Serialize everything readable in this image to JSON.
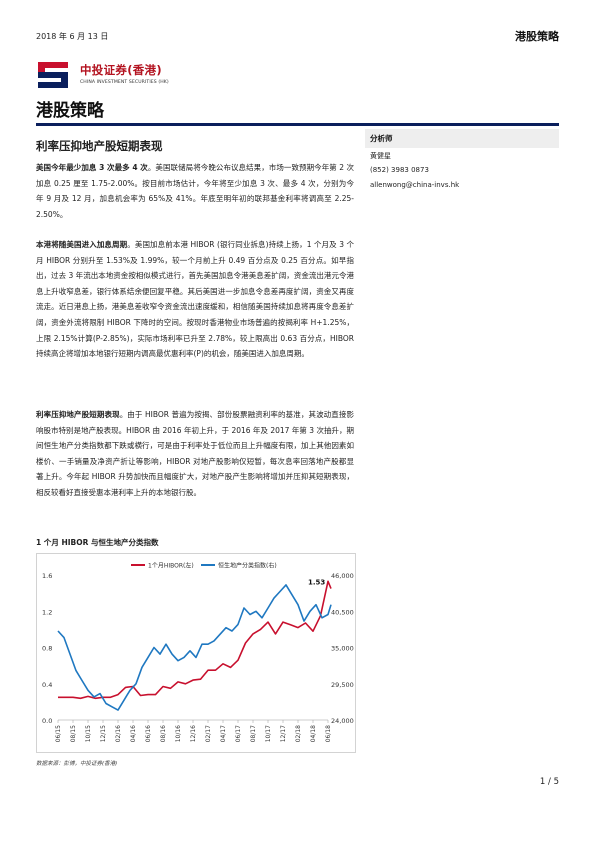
{
  "header": {
    "date": "2018 年 6 月 13 日",
    "category": "港股策略"
  },
  "logo": {
    "name_cn": "中投证券(香港)",
    "name_en": "CHINA INVESTMENT SECURITIES (HK)"
  },
  "page_title": "港股策略",
  "article_title": "利率压抑地产股短期表现",
  "paragraphs": [
    {
      "lead": "美国今年最少加息 3 次最多 4 次",
      "text": "。美国联储局将今晚公布议息结果，市场一致预期今年第 2 次加息 0.25 厘至 1.75-2.00%。按目前市场估计，今年将至少加息 3 次、最多 4 次，分别为今年 9 月及 12 月，加息机会率为 65%及 41%。年底至明年初的联邦基金利率将调高至 2.25-2.50%。"
    },
    {
      "lead": "本港将随美国进入加息周期",
      "text": "。美国加息前本港 HIBOR (银行同业拆息)持续上扬，1 个月及 3 个月 HIBOR 分别升至 1.53%及 1.99%，较一个月前上升 0.49 百分点及 0.25 百分点。如早指出，过去 3 年流出本地资金按相似模式进行，首先美国加息令港美息差扩阔，资金流出港元令港息上升收窄息差，银行体系结余便回复平稳。其后美国进一步加息令息差再度扩阔，资金又再度流走。近日港息上扬，港美息差收窄令资金流出速度缓和，相信随美国持续加息将再度令息差扩阔，资金外流将限制 HIBOR 下降时的空间。按现时香港物业市场普遍的按揭利率 H+1.25%，上限 2.15%计算(P-2.85%)，实际市场利率已升至 2.78%，较上限高出 0.63 百分点，HIBOR 持续高企将增加本地银行短期内调高最优惠利率(P)的机会，随美国进入加息周期。"
    },
    {
      "lead": "利率压抑地产股短期表现",
      "text": "。由于 HIBOR 普遍为按揭、部份股票融资利率的基准，其波动直接影响股市特别是地产股表现。HIBOR 由 2016 年初上升，于 2016 年及 2017 年第 3 次抽升，期间恒生地产分类指数都下跌或横行，可是由于利率处于低位而且上升幅度有限，加上其他因素如楼价、一手销量及净资产折让等影响，HIBOR 对地产股影响仅短暂，每次息率回落地产股都显著上升。今年起 HIBOR 升势加快而且幅度扩大，对地产股产生影响将增加并压抑其短期表现，相反较看好直接受惠本港利率上升的本地银行股。"
    }
  ],
  "sidebar": {
    "heading": "分析师",
    "analyst": "黄健星",
    "phone": "(852) 3983 0873",
    "email": "allenwong@china-invs.hk"
  },
  "chart_title": "1 个月 HIBOR 与恒生地产分类指数",
  "source": "数据来源：彭博，中投证券(香港)",
  "page_number": "1 / 5",
  "colors": {
    "hibor": "#c8102e",
    "index": "#1f78c1",
    "title_bar": "#0a1f5c"
  },
  "chart_data": {
    "type": "line",
    "x_ticks": [
      "06/15",
      "08/15",
      "10/15",
      "12/15",
      "02/16",
      "04/16",
      "06/16",
      "08/16",
      "10/16",
      "12/16",
      "02/17",
      "04/17",
      "06/17",
      "08/17",
      "10/17",
      "12/17",
      "02/18",
      "04/18",
      "06/18"
    ],
    "y_left_ticks": [
      "0.0",
      "0.4",
      "0.8",
      "1.2",
      "1.6"
    ],
    "y_right_ticks": [
      "24,000",
      "29,500",
      "35,000",
      "40,500",
      "46,000"
    ],
    "y_left_range": [
      0,
      1.6
    ],
    "y_right_range": [
      24000,
      46000
    ],
    "annotation": "1.53",
    "series": [
      {
        "name": "1个月HIBOR(左)",
        "axis": "left",
        "x": [
          0,
          0.5,
          1,
          1.5,
          2,
          2.5,
          3,
          3.5,
          4,
          4.5,
          5,
          5.5,
          6,
          6.5,
          7,
          7.5,
          8,
          8.5,
          9,
          9.5,
          10,
          10.5,
          11,
          11.5,
          12,
          12.5,
          13,
          13.5,
          14,
          14.5,
          15,
          15.5,
          16,
          16.5,
          17,
          17.5,
          18,
          18.2
        ],
        "values": [
          0.25,
          0.25,
          0.25,
          0.24,
          0.26,
          0.24,
          0.25,
          0.25,
          0.28,
          0.36,
          0.37,
          0.27,
          0.28,
          0.28,
          0.37,
          0.35,
          0.42,
          0.4,
          0.44,
          0.45,
          0.55,
          0.55,
          0.62,
          0.58,
          0.66,
          0.85,
          0.95,
          1.0,
          1.08,
          0.95,
          1.08,
          1.05,
          1.02,
          1.07,
          0.98,
          1.15,
          1.53,
          1.45
        ]
      },
      {
        "name": "恒生地产分类指数(右)",
        "axis": "right",
        "x": [
          0,
          0.4,
          0.8,
          1.2,
          1.6,
          2,
          2.4,
          2.8,
          3.2,
          3.6,
          4,
          4.4,
          4.8,
          5.2,
          5.6,
          6,
          6.4,
          6.8,
          7.2,
          7.6,
          8,
          8.4,
          8.8,
          9.2,
          9.6,
          10,
          10.4,
          10.8,
          11.2,
          11.6,
          12,
          12.4,
          12.8,
          13.2,
          13.6,
          14,
          14.4,
          14.8,
          15.2,
          15.6,
          16,
          16.4,
          16.8,
          17.2,
          17.6,
          18,
          18.2
        ],
        "values": [
          37500,
          36500,
          34000,
          31500,
          30000,
          28500,
          27500,
          28000,
          26500,
          26000,
          25500,
          27000,
          28500,
          29500,
          32000,
          33500,
          35000,
          34000,
          35500,
          34000,
          33000,
          33500,
          34500,
          33500,
          35500,
          35500,
          36000,
          37000,
          38000,
          37500,
          38500,
          41000,
          40000,
          40500,
          39500,
          41000,
          42500,
          43500,
          44500,
          43000,
          41500,
          39000,
          40500,
          41500,
          39500,
          40000,
          41500
        ]
      }
    ]
  }
}
